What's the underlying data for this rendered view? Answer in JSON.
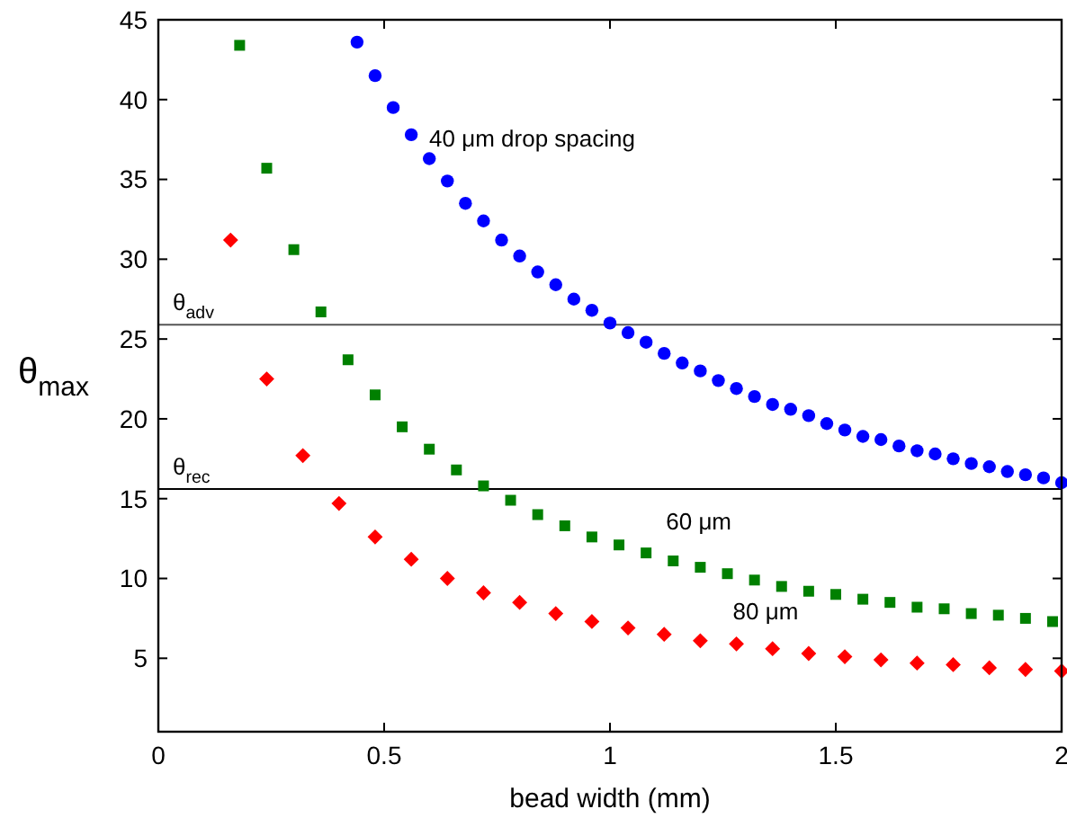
{
  "chart_data": {
    "type": "scatter",
    "xlabel": "bead width (mm)",
    "ylabel": "θ$_{max}$",
    "xlim": [
      0,
      2
    ],
    "ylim": [
      0.4,
      45
    ],
    "xticks": [
      0,
      0.5,
      1,
      1.5,
      2
    ],
    "yticks": [
      5,
      10,
      15,
      20,
      25,
      30,
      35,
      40,
      45
    ],
    "grid": false,
    "series": [
      {
        "name": "40 μm drop spacing",
        "color": "#0000ff",
        "marker": "circle",
        "x": [
          0.44,
          0.48,
          0.52,
          0.56,
          0.6,
          0.64,
          0.68,
          0.72,
          0.76,
          0.8,
          0.84,
          0.88,
          0.92,
          0.96,
          1.0,
          1.04,
          1.08,
          1.12,
          1.16,
          1.2,
          1.24,
          1.28,
          1.32,
          1.36,
          1.4,
          1.44,
          1.48,
          1.52,
          1.56,
          1.6,
          1.64,
          1.68,
          1.72,
          1.76,
          1.8,
          1.84,
          1.88,
          1.92,
          1.96,
          2.0
        ],
        "values": [
          43.6,
          41.5,
          39.5,
          37.8,
          36.3,
          34.9,
          33.5,
          32.4,
          31.2,
          30.2,
          29.2,
          28.4,
          27.5,
          26.8,
          26.0,
          25.4,
          24.8,
          24.1,
          23.5,
          23.0,
          22.4,
          21.9,
          21.4,
          20.9,
          20.6,
          20.2,
          19.7,
          19.3,
          18.9,
          18.7,
          18.3,
          18.0,
          17.8,
          17.5,
          17.2,
          17.0,
          16.7,
          16.5,
          16.3,
          16.0
        ]
      },
      {
        "name": "60 μm",
        "color": "#008000",
        "marker": "square",
        "x": [
          0.18,
          0.24,
          0.3,
          0.36,
          0.42,
          0.48,
          0.54,
          0.6,
          0.66,
          0.72,
          0.78,
          0.84,
          0.9,
          0.96,
          1.02,
          1.08,
          1.14,
          1.2,
          1.26,
          1.32,
          1.38,
          1.44,
          1.5,
          1.56,
          1.62,
          1.68,
          1.74,
          1.8,
          1.86,
          1.92,
          1.98
        ],
        "values": [
          43.4,
          35.7,
          30.6,
          26.7,
          23.7,
          21.5,
          19.5,
          18.1,
          16.8,
          15.8,
          14.9,
          14.0,
          13.3,
          12.6,
          12.1,
          11.6,
          11.1,
          10.7,
          10.3,
          9.9,
          9.5,
          9.2,
          9.0,
          8.7,
          8.5,
          8.2,
          8.1,
          7.8,
          7.7,
          7.5,
          7.3
        ]
      },
      {
        "name": "80 μm",
        "color": "#ff0000",
        "marker": "diamond",
        "x": [
          0.16,
          0.24,
          0.32,
          0.4,
          0.48,
          0.56,
          0.64,
          0.72,
          0.8,
          0.88,
          0.96,
          1.04,
          1.12,
          1.2,
          1.28,
          1.36,
          1.44,
          1.52,
          1.6,
          1.68,
          1.76,
          1.84,
          1.92,
          2.0
        ],
        "values": [
          31.2,
          22.5,
          17.7,
          14.7,
          12.6,
          11.2,
          10.0,
          9.1,
          8.5,
          7.8,
          7.3,
          6.9,
          6.5,
          6.1,
          5.9,
          5.6,
          5.3,
          5.1,
          4.9,
          4.7,
          4.6,
          4.4,
          4.3,
          4.2
        ]
      }
    ],
    "ref_lines": [
      {
        "axis": "y",
        "value": 25.9,
        "label": "θ$_{adv}$",
        "color": "#555555"
      },
      {
        "axis": "y",
        "value": 15.6,
        "label": "θ$_{rec}$",
        "color": "#000000"
      }
    ]
  }
}
